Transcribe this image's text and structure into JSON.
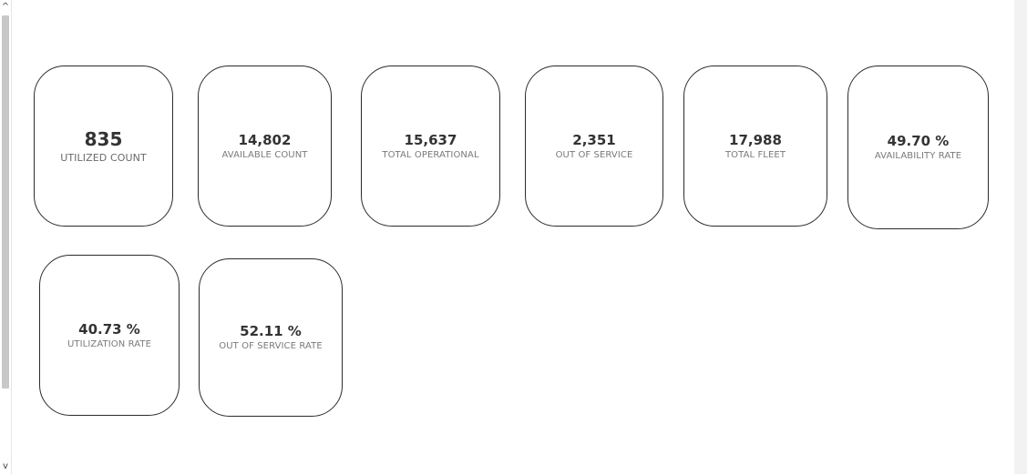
{
  "scrollbar": {
    "up_arrow": "^",
    "down_arrow": "v"
  },
  "kpis": [
    {
      "value": "835",
      "label": "UTILIZED COUNT"
    },
    {
      "value": "14,802",
      "label": "AVAILABLE COUNT"
    },
    {
      "value": "15,637",
      "label": "TOTAL OPERATIONAL"
    },
    {
      "value": "2,351",
      "label": "OUT OF SERVICE"
    },
    {
      "value": "17,988",
      "label": "TOTAL FLEET"
    },
    {
      "value": "49.70 %",
      "label": "AVAILABILITY RATE"
    },
    {
      "value": "40.73 %",
      "label": "UTILIZATION RATE"
    },
    {
      "value": "52.11 %",
      "label": "OUT OF SERVICE RATE"
    }
  ]
}
